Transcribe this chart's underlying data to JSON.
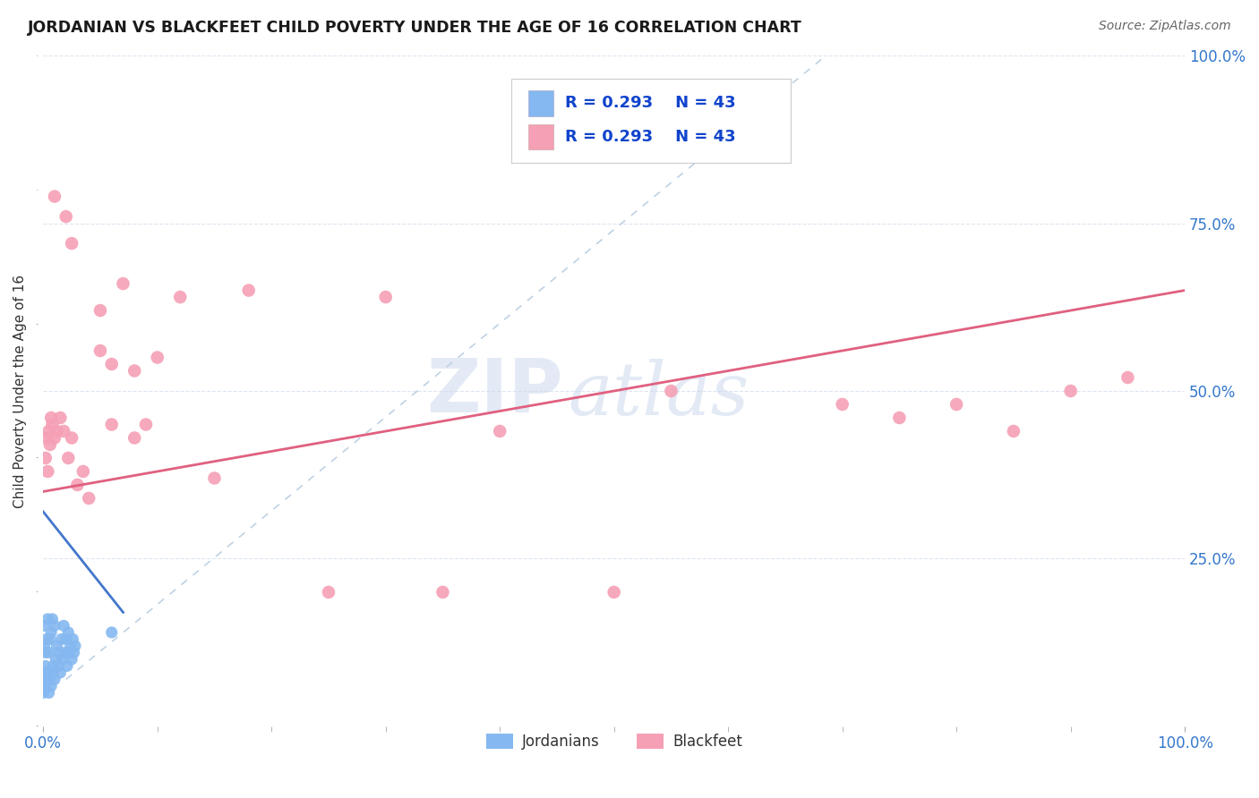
{
  "title": "JORDANIAN VS BLACKFEET CHILD POVERTY UNDER THE AGE OF 16 CORRELATION CHART",
  "source": "Source: ZipAtlas.com",
  "ylabel": "Child Poverty Under the Age of 16",
  "legend_label1": "Jordanians",
  "legend_label2": "Blackfeet",
  "R1": "0.293",
  "N1": "43",
  "R2": "0.293",
  "N2": "43",
  "color_jordanians": "#85b8f0",
  "color_blackfeet": "#f5a0b5",
  "color_trend_jordanians": "#4477cc",
  "color_trend_blackfeet": "#e06080",
  "color_diagonal": "#b8cce0",
  "color_grid": "#dde5f0",
  "color_title": "#1a1a1a",
  "color_source": "#666666",
  "color_axis_label": "#3377cc",
  "color_legend_text": "#1144cc",
  "background_color": "#ffffff",
  "jordanians_x": [
    0.0,
    0.0,
    0.001,
    0.001,
    0.001,
    0.001,
    0.002,
    0.002,
    0.002,
    0.003,
    0.003,
    0.004,
    0.004,
    0.005,
    0.005,
    0.006,
    0.006,
    0.007,
    0.007,
    0.008,
    0.008,
    0.009,
    0.01,
    0.01,
    0.011,
    0.012,
    0.013,
    0.014,
    0.015,
    0.016,
    0.017,
    0.018,
    0.019,
    0.02,
    0.021,
    0.022,
    0.023,
    0.024,
    0.025,
    0.026,
    0.027,
    0.028,
    0.06
  ],
  "jordanians_y": [
    0.05,
    0.07,
    0.055,
    0.08,
    0.12,
    0.15,
    0.06,
    0.09,
    0.11,
    0.07,
    0.13,
    0.08,
    0.16,
    0.05,
    0.11,
    0.07,
    0.13,
    0.06,
    0.14,
    0.08,
    0.16,
    0.09,
    0.07,
    0.15,
    0.1,
    0.12,
    0.09,
    0.11,
    0.08,
    0.13,
    0.1,
    0.15,
    0.11,
    0.13,
    0.09,
    0.14,
    0.11,
    0.12,
    0.1,
    0.13,
    0.11,
    0.12,
    0.14
  ],
  "blackfeet_x": [
    0.002,
    0.003,
    0.004,
    0.005,
    0.006,
    0.007,
    0.008,
    0.01,
    0.012,
    0.015,
    0.018,
    0.022,
    0.025,
    0.03,
    0.035,
    0.04,
    0.05,
    0.06,
    0.07,
    0.08,
    0.09,
    0.1,
    0.12,
    0.15,
    0.18,
    0.25,
    0.3,
    0.35,
    0.4,
    0.5,
    0.55,
    0.7,
    0.75,
    0.8,
    0.85,
    0.9,
    0.95,
    0.01,
    0.02,
    0.025,
    0.05,
    0.06,
    0.08
  ],
  "blackfeet_y": [
    0.4,
    0.43,
    0.38,
    0.44,
    0.42,
    0.46,
    0.45,
    0.43,
    0.44,
    0.46,
    0.44,
    0.4,
    0.43,
    0.36,
    0.38,
    0.34,
    0.62,
    0.45,
    0.66,
    0.43,
    0.45,
    0.55,
    0.64,
    0.37,
    0.65,
    0.2,
    0.64,
    0.2,
    0.44,
    0.2,
    0.5,
    0.48,
    0.46,
    0.48,
    0.44,
    0.5,
    0.52,
    0.79,
    0.76,
    0.72,
    0.56,
    0.54,
    0.53
  ],
  "watermark_zip": "ZIP",
  "watermark_atlas": "atlas",
  "xlim": [
    0.0,
    1.0
  ],
  "ylim": [
    0.0,
    1.0
  ],
  "xticks": [
    0.0,
    1.0
  ],
  "xticklabels": [
    "0.0%",
    "100.0%"
  ],
  "yticks_right": [
    0.25,
    0.5,
    0.75,
    1.0
  ],
  "yticklabels_right": [
    "25.0%",
    "50.0%",
    "75.0%",
    "100.0%"
  ]
}
